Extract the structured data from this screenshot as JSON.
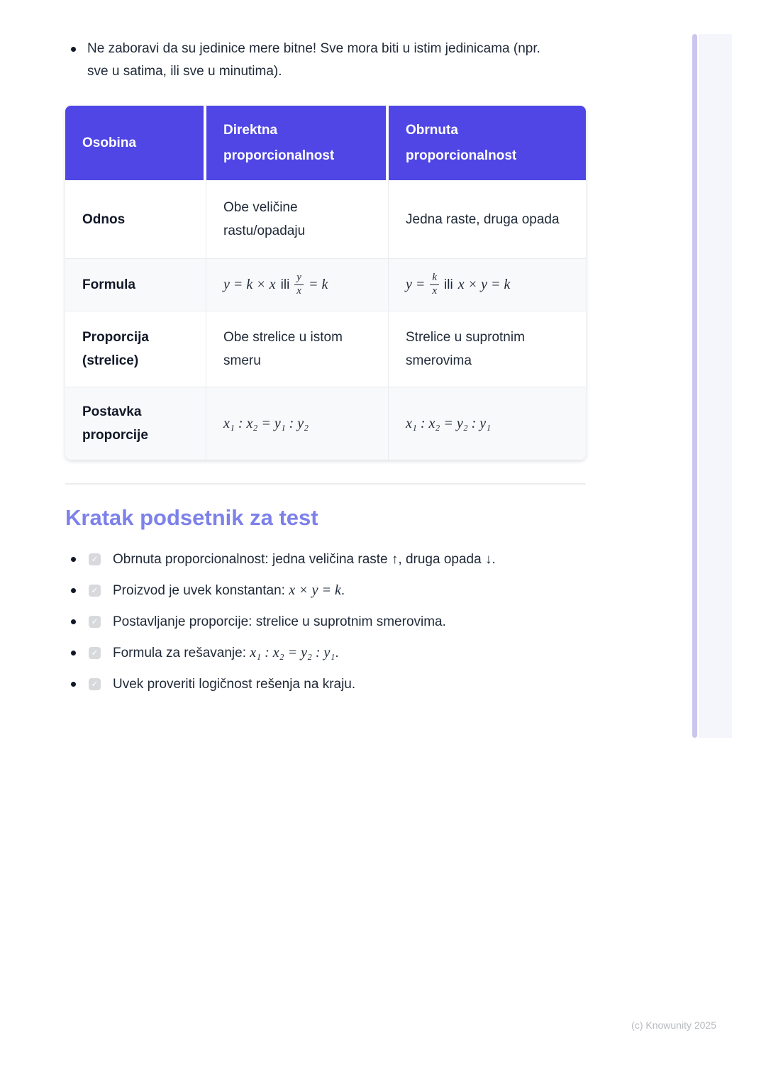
{
  "page": {
    "note": "Ne zaboravi da su jedinice mere bitne! Sve mora biti u istim jedinicama (npr. sve u satima, ili sve u minutima).",
    "footer": "(c) Knowunity 2025"
  },
  "colors": {
    "table_header_bg": "#4f46e5",
    "section_title": "#7d81e9",
    "checkbox_bg": "#d7d9dc",
    "scrollbar": "#cbc6ee",
    "body_text": "#1f2937"
  },
  "icons": {
    "checkbox_checked": "✓"
  },
  "table": {
    "headers": [
      "Osobina",
      "Direktna proporcionalnost",
      "Obrnuta proporcionalnost"
    ],
    "rows": {
      "odnos": {
        "label": "Odnos",
        "direct": "Obe veličine rastu/opadaju",
        "inverse": "Jedna raste, druga opada"
      },
      "formula": {
        "label": "Formula",
        "direct": {
          "pre": "y = k × x",
          "conj": "ili",
          "frac_num": "y",
          "frac_den": "x",
          "post": "= k"
        },
        "inverse": {
          "pre": "y =",
          "frac_num": "k",
          "frac_den": "x",
          "conj": "ili",
          "post": "x × y = k"
        }
      },
      "proporcija": {
        "label": "Proporcija (strelice)",
        "direct": "Obe strelice u istom smeru",
        "inverse": "Strelice u suprotnim smerovima"
      },
      "postavka": {
        "label": "Postavka proporcije",
        "direct": "x₁ : x₂ = y₁ : y₂",
        "inverse": "x₁ : x₂ = y₂ : y₁"
      }
    }
  },
  "reminder": {
    "title": "Kratak podsetnik za test",
    "items": [
      {
        "text": "Obrnuta proporcionalnost: jedna veličina raste ↑, druga opada ↓.",
        "math": "",
        "suffix": ""
      },
      {
        "text": "Proizvod je uvek konstantan: ",
        "math": "x × y = k",
        "suffix": "."
      },
      {
        "text": "Postavljanje proporcije: strelice u suprotnim smerovima.",
        "math": "",
        "suffix": ""
      },
      {
        "text": "Formula za rešavanje: ",
        "math": "x₁ : x₂ = y₂ : y₁",
        "suffix": "."
      },
      {
        "text": "Uvek proveriti logičnost rešenja na kraju.",
        "math": "",
        "suffix": ""
      }
    ]
  }
}
